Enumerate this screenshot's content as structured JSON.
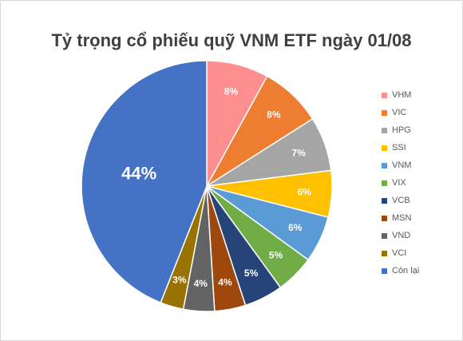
{
  "chart_data": {
    "type": "pie",
    "title": "Tỷ trọng cổ phiếu quỹ VNM ETF ngày 01/08",
    "categories": [
      "VHM",
      "VIC",
      "HPG",
      "SSI",
      "VNM",
      "VIX",
      "VCB",
      "MSN",
      "VND",
      "VCI",
      "Còn lại"
    ],
    "values": [
      8,
      8,
      7,
      6,
      6,
      5,
      5,
      4,
      4,
      3,
      44
    ],
    "labels": [
      "8%",
      "8%",
      "7%",
      "6%",
      "6%",
      "5%",
      "5%",
      "4%",
      "4%",
      "3%",
      "44%"
    ],
    "colors": [
      "#FF8F8F",
      "#ED7D31",
      "#A5A5A5",
      "#FFC000",
      "#5B9BD5",
      "#70AD47",
      "#264478",
      "#9E480E",
      "#636363",
      "#997300",
      "#4472C4"
    ],
    "legend_position": "right",
    "start_angle_deg": 0,
    "direction": "clockwise"
  }
}
